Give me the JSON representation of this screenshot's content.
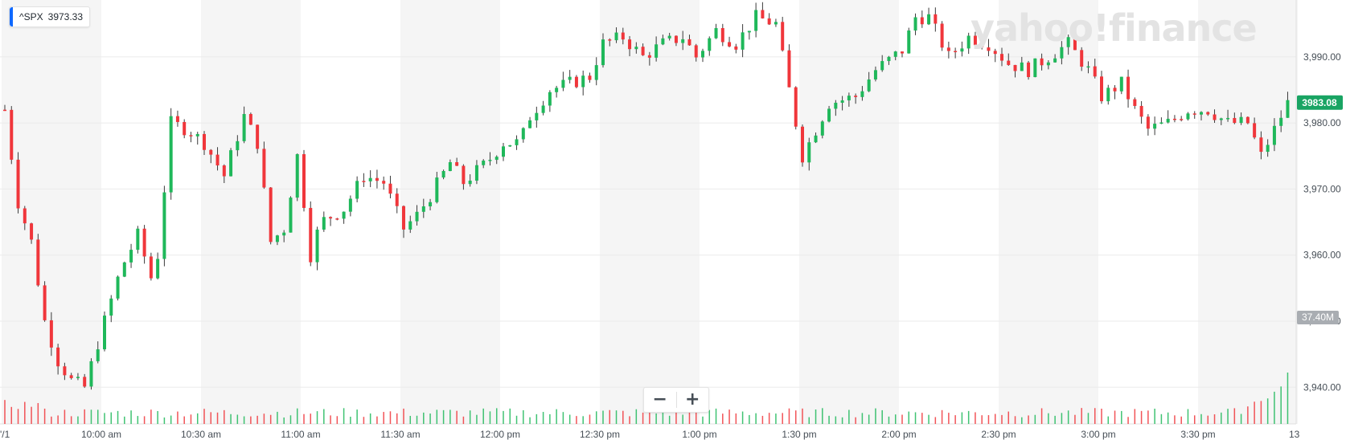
{
  "ticker": {
    "symbol": "^SPX",
    "value": "3973.33"
  },
  "brand": {
    "text": "yahoo!finance"
  },
  "zoom": {
    "minus": "−",
    "plus": "+"
  },
  "axis_ticks": {
    "y": [
      "3,990.00",
      "3,980.00",
      "3,970.00",
      "3,960.00",
      "3,950.00",
      "3,940.00"
    ],
    "x": [
      "'/1",
      "10:00 am",
      "10:30 am",
      "11:00 am",
      "11:30 am",
      "12:00 pm",
      "12:30 pm",
      "1:00 pm",
      "1:30 pm",
      "2:00 pm",
      "2:30 pm",
      "3:00 pm",
      "3:30 pm",
      "13"
    ]
  },
  "badges": {
    "last_price": "3983.08",
    "volume": "37.40M"
  },
  "colors": {
    "up": "#1fb85a",
    "down": "#f0363b",
    "badge": "#19a463",
    "volume_badge": "#a9adb2",
    "band": "#f5f5f5",
    "grid": "#ebebeb"
  },
  "chart_data": {
    "type": "candlestick",
    "interval_minutes": 2,
    "start_time": "09:30",
    "ylim": [
      3937.0,
      3998.0
    ],
    "x_ticks": [
      "'/1",
      "10:00 am",
      "10:30 am",
      "11:00 am",
      "11:30 am",
      "12:00 pm",
      "12:30 pm",
      "1:00 pm",
      "1:30 pm",
      "2:00 pm",
      "2:30 pm",
      "3:00 pm",
      "3:30 pm",
      "13"
    ],
    "y_ticks": [
      3990,
      3980,
      3970,
      3960,
      3950,
      3940
    ],
    "last_price": 3983.08,
    "last_volume_label": "37.40M",
    "anchors": [
      [
        "09:30",
        3982
      ],
      [
        "09:34",
        3968
      ],
      [
        "09:38",
        3962
      ],
      [
        "09:42",
        3950
      ],
      [
        "09:46",
        3944
      ],
      [
        "09:50",
        3941
      ],
      [
        "09:54",
        3940
      ],
      [
        "10:00",
        3950
      ],
      [
        "10:05",
        3958
      ],
      [
        "10:10",
        3963
      ],
      [
        "10:15",
        3955
      ],
      [
        "10:18",
        3970
      ],
      [
        "10:20",
        3980
      ],
      [
        "10:25",
        3979
      ],
      [
        "10:30",
        3977
      ],
      [
        "10:36",
        3972
      ],
      [
        "10:42",
        3981
      ],
      [
        "10:46",
        3977
      ],
      [
        "10:50",
        3962
      ],
      [
        "10:54",
        3964
      ],
      [
        "10:58",
        3975
      ],
      [
        "11:00",
        3968
      ],
      [
        "11:02",
        3960
      ],
      [
        "11:05",
        3965
      ],
      [
        "11:12",
        3967
      ],
      [
        "11:18",
        3972
      ],
      [
        "11:24",
        3971
      ],
      [
        "11:30",
        3964
      ],
      [
        "11:34",
        3966
      ],
      [
        "11:38",
        3969
      ],
      [
        "11:44",
        3974
      ],
      [
        "11:48",
        3971
      ],
      [
        "11:55",
        3974
      ],
      [
        "12:00",
        3977
      ],
      [
        "12:05",
        3977
      ],
      [
        "12:08",
        3981
      ],
      [
        "12:14",
        3985
      ],
      [
        "12:20",
        3986
      ],
      [
        "12:26",
        3987
      ],
      [
        "12:30",
        3992
      ],
      [
        "12:36",
        3993
      ],
      [
        "12:42",
        3990
      ],
      [
        "12:48",
        3992
      ],
      [
        "12:54",
        3993
      ],
      [
        "12:58",
        3990
      ],
      [
        "13:04",
        3994
      ],
      [
        "13:10",
        3992
      ],
      [
        "13:16",
        3996
      ],
      [
        "13:22",
        3995
      ],
      [
        "13:26",
        3985
      ],
      [
        "13:30",
        3975
      ],
      [
        "13:33",
        3978
      ],
      [
        "13:38",
        3983
      ],
      [
        "13:46",
        3984
      ],
      [
        "13:52",
        3988
      ],
      [
        "14:00",
        3991
      ],
      [
        "14:04",
        3996
      ],
      [
        "14:08",
        3996
      ],
      [
        "14:14",
        3990
      ],
      [
        "14:20",
        3993
      ],
      [
        "14:26",
        3992
      ],
      [
        "14:32",
        3989
      ],
      [
        "14:38",
        3988
      ],
      [
        "14:44",
        3990
      ],
      [
        "14:50",
        3992
      ],
      [
        "14:56",
        3988
      ],
      [
        "15:00",
        3984
      ],
      [
        "15:06",
        3986
      ],
      [
        "15:10",
        3982
      ],
      [
        "15:14",
        3979
      ],
      [
        "15:20",
        3980
      ],
      [
        "15:26",
        3982
      ],
      [
        "15:32",
        3982
      ],
      [
        "15:38",
        3980
      ],
      [
        "15:44",
        3980
      ],
      [
        "15:48",
        3975
      ],
      [
        "15:52",
        3979
      ],
      [
        "15:56",
        3983
      ],
      [
        "15:58",
        3983
      ]
    ]
  }
}
